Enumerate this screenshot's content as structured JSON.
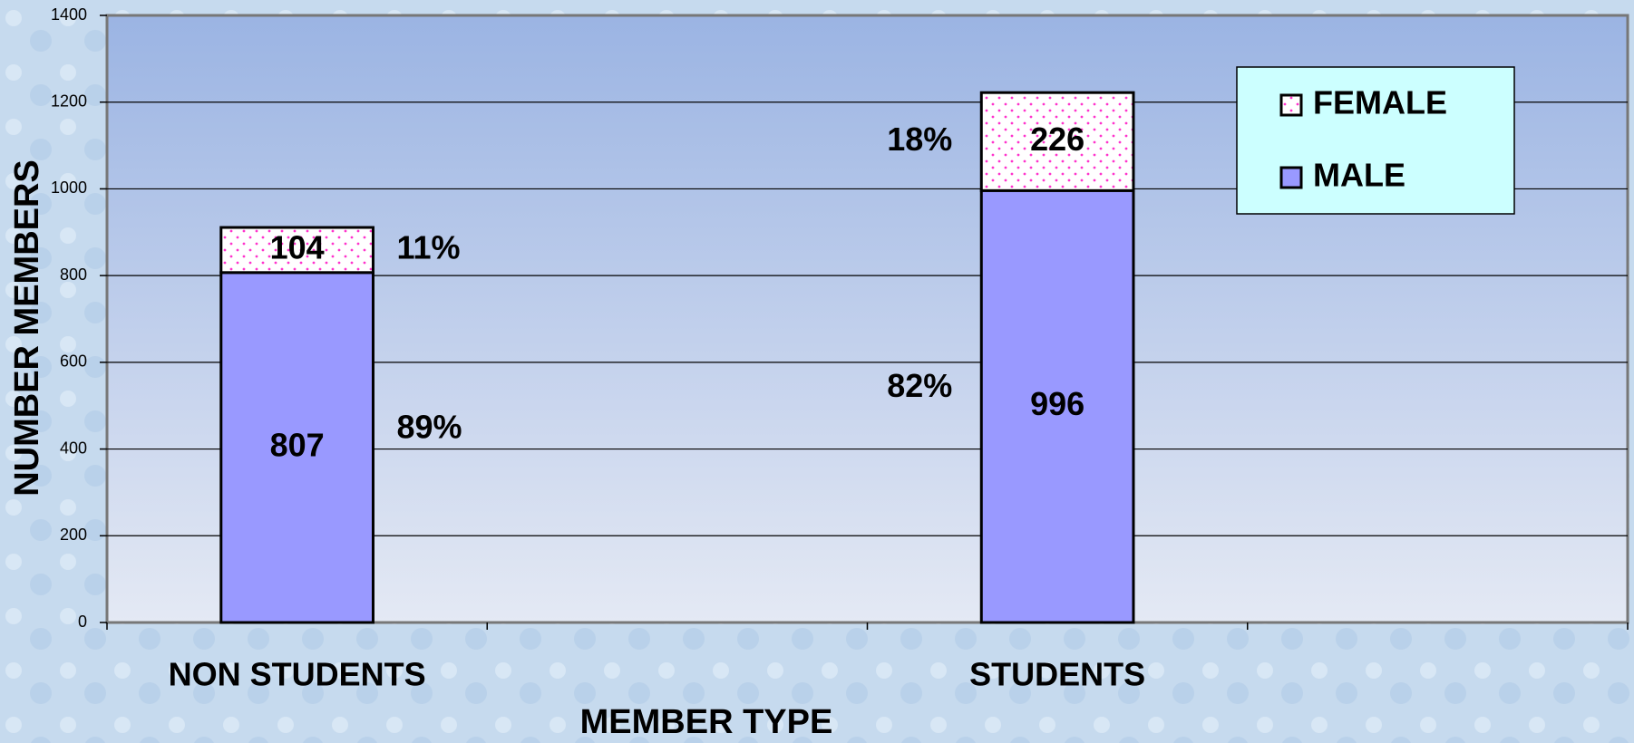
{
  "chart_data": {
    "type": "stacked_bar",
    "x_label": "MEMBER TYPE",
    "y_label": "NUMBER MEMBERS",
    "categories": [
      "NON STUDENTS",
      null,
      "STUDENTS",
      null
    ],
    "series": [
      {
        "name": "MALE",
        "color": "#9999ff",
        "values": [
          807,
          0,
          996,
          0
        ],
        "share_labels": [
          "89%",
          null,
          "82%",
          null
        ]
      },
      {
        "name": "FEMALE",
        "color": "#ffffff",
        "pattern": "dots",
        "dot_color": "#ff33cc",
        "values": [
          104,
          0,
          226,
          0
        ],
        "share_labels": [
          "11%",
          null,
          "18%",
          null
        ]
      }
    ],
    "ylim": [
      0,
      1400
    ],
    "yticks": [
      0,
      200,
      400,
      600,
      800,
      1000,
      1200,
      1400
    ],
    "grid": true,
    "legend": "upper right"
  }
}
